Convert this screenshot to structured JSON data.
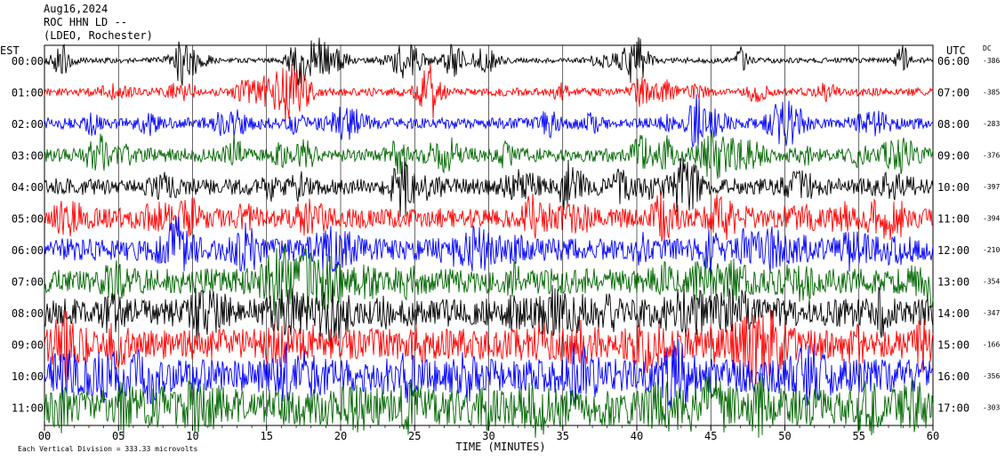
{
  "header": {
    "date": "Aug16,2024",
    "station": "ROC HHN LD --",
    "network": "(LDEO, Rochester)"
  },
  "chart_data": {
    "type": "line",
    "title": "",
    "left_axis_label": "EST",
    "right_axis_label": "UTC",
    "dc_label": "DC",
    "xlabel": "TIME (MINUTES)",
    "xlim": [
      0,
      60
    ],
    "x_ticks": [
      0,
      5,
      10,
      15,
      20,
      25,
      30,
      35,
      40,
      45,
      50,
      55,
      60
    ],
    "x_tick_labels": [
      "00",
      "05",
      "10",
      "15",
      "20",
      "25",
      "30",
      "35",
      "40",
      "45",
      "50",
      "55",
      "60"
    ],
    "footer_note": "Each Vertical Division =  333.33 microvolts",
    "rows": [
      {
        "est": "00:00",
        "utc": "06:00",
        "dc": "-386",
        "color": "#000000"
      },
      {
        "est": "01:00",
        "utc": "07:00",
        "dc": "-385",
        "color": "#ff0000"
      },
      {
        "est": "02:00",
        "utc": "08:00",
        "dc": "-283",
        "color": "#0000ff"
      },
      {
        "est": "03:00",
        "utc": "09:00",
        "dc": "-376",
        "color": "#006600"
      },
      {
        "est": "04:00",
        "utc": "10:00",
        "dc": "-397",
        "color": "#000000"
      },
      {
        "est": "05:00",
        "utc": "11:00",
        "dc": "-394",
        "color": "#ff0000"
      },
      {
        "est": "06:00",
        "utc": "12:00",
        "dc": "-210",
        "color": "#0000ff"
      },
      {
        "est": "07:00",
        "utc": "13:00",
        "dc": "-354",
        "color": "#006600"
      },
      {
        "est": "08:00",
        "utc": "14:00",
        "dc": "-347",
        "color": "#000000"
      },
      {
        "est": "09:00",
        "utc": "15:00",
        "dc": "-166",
        "color": "#ff0000"
      },
      {
        "est": "10:00",
        "utc": "16:00",
        "dc": "-356",
        "color": "#0000ff"
      },
      {
        "est": "11:00",
        "utc": "17:00",
        "dc": "-303",
        "color": "#006600"
      }
    ],
    "grid": true
  }
}
